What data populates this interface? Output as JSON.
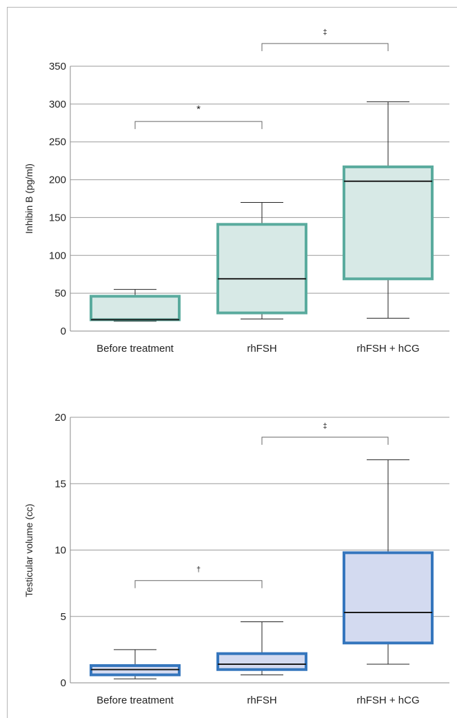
{
  "chart_data": [
    {
      "type": "box",
      "ylabel": "Inhibin B (pg/ml)",
      "ylim": [
        0,
        350
      ],
      "yticks": [
        0,
        50,
        100,
        150,
        200,
        250,
        300,
        350
      ],
      "grid": true,
      "box_color": "#5aab9e",
      "box_fill": "#d7e9e6",
      "categories": [
        "Before treatment",
        "rhFSH",
        "rhFSH + hCG"
      ],
      "boxes": [
        {
          "min": 13,
          "q1": 15,
          "median": 15,
          "q3": 46,
          "max": 55
        },
        {
          "min": 16,
          "q1": 24,
          "median": 69,
          "q3": 141,
          "max": 170
        },
        {
          "min": 17,
          "q1": 69,
          "median": 198,
          "q3": 217,
          "max": 303
        }
      ],
      "significance": [
        {
          "from": 0,
          "to": 1,
          "label": "*",
          "level": 277
        },
        {
          "from": 1,
          "to": 2,
          "label": "‡",
          "level": 380
        }
      ]
    },
    {
      "type": "box",
      "ylabel": "Testicular volume (cc)",
      "ylim": [
        0,
        20
      ],
      "yticks": [
        0,
        5,
        10,
        15,
        20
      ],
      "grid": true,
      "box_color": "#3576bd",
      "box_fill": "#d3daf0",
      "categories": [
        "Before treatment",
        "rhFSH",
        "rhFSH + hCG"
      ],
      "boxes": [
        {
          "min": 0.3,
          "q1": 0.6,
          "median": 1.0,
          "q3": 1.3,
          "max": 2.5
        },
        {
          "min": 0.6,
          "q1": 1.0,
          "median": 1.4,
          "q3": 2.2,
          "max": 4.6
        },
        {
          "min": 1.4,
          "q1": 3.0,
          "median": 5.3,
          "q3": 9.8,
          "max": 16.8
        }
      ],
      "significance": [
        {
          "from": 0,
          "to": 1,
          "label": "†",
          "level": 7.7
        },
        {
          "from": 1,
          "to": 2,
          "label": "‡",
          "level": 18.5
        }
      ]
    }
  ]
}
